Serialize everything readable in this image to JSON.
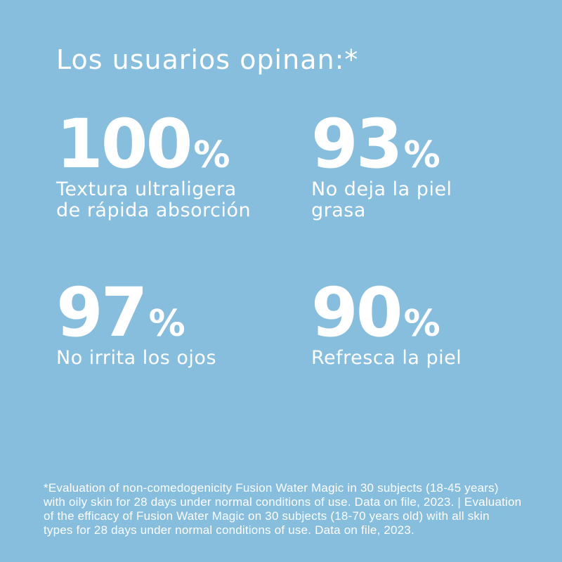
{
  "colors": {
    "background": "#87BEDD",
    "text": "#FFFFFF"
  },
  "title": "Los usuarios opinan:*",
  "stats": [
    {
      "value": "100",
      "unit": "%",
      "caption_lines": [
        "Textura ultraligera",
        "de rápida absorción"
      ]
    },
    {
      "value": "93",
      "unit": "%",
      "caption_lines": [
        "No deja la piel",
        "grasa"
      ]
    },
    {
      "value": "97",
      "unit": "%",
      "caption_lines": [
        "No irrita los ojos"
      ]
    },
    {
      "value": "90",
      "unit": "%",
      "caption_lines": [
        "Refresca la piel"
      ]
    }
  ],
  "footnote": {
    "lines": [
      "*Evaluation of non-comedogenicity Fusion Water Magic in 30 subjects (18-45 years)",
      "with oily skin for 28 days under normal conditions of use. Data on file, 2023. | Evaluation",
      "of the efficacy of Fusion Water Magic on 30 subjects (18-70 years old) with all skin",
      "types for 28 days under normal conditions of use. Data on file, 2023."
    ]
  }
}
